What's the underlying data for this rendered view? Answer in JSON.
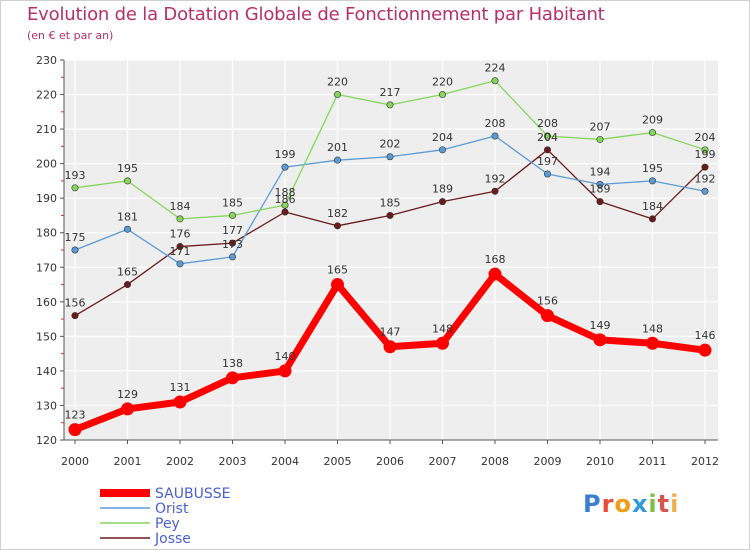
{
  "header": {
    "title": "Evolution de la Dotation Globale de Fonctionnement par Habitant",
    "subtitle": "(en € et par an)"
  },
  "chart_data": {
    "type": "line",
    "title": "Evolution de la Dotation Globale de Fonctionnement par Habitant",
    "subtitle": "(en € et par an)",
    "x": [
      "2000",
      "2001",
      "2002",
      "2003",
      "2004",
      "2005",
      "2006",
      "2007",
      "2008",
      "2009",
      "2010",
      "2011",
      "2012"
    ],
    "ylim": [
      120,
      230
    ],
    "yticks": [
      120,
      130,
      140,
      150,
      160,
      170,
      180,
      190,
      200,
      210,
      220,
      230
    ],
    "grid": true,
    "legend_position": "bottom-left",
    "series": [
      {
        "name": "Josse",
        "color": "#6b1b1b",
        "values": [
          156,
          165,
          176,
          177,
          186,
          182,
          185,
          189,
          192,
          204,
          189,
          184,
          199
        ]
      },
      {
        "name": "Orist",
        "color": "#5b9bd5",
        "values": [
          175,
          181,
          171,
          173,
          199,
          201,
          202,
          204,
          208,
          197,
          194,
          195,
          192
        ]
      },
      {
        "name": "Pey",
        "color": "#85d65a",
        "values": [
          193,
          195,
          184,
          185,
          188,
          220,
          217,
          220,
          224,
          208,
          207,
          209,
          204
        ]
      },
      {
        "name": "SAUBUSSE",
        "color": "#ff0000",
        "values": [
          123,
          129,
          131,
          138,
          140,
          165,
          147,
          148,
          168,
          156,
          149,
          148,
          146
        ]
      }
    ],
    "legend_order": [
      "SAUBUSSE",
      "Orist",
      "Pey",
      "Josse"
    ]
  },
  "logo": {
    "text": "Proxiti",
    "letters": [
      "P",
      "r",
      "o",
      "x",
      "i",
      "t",
      "i"
    ],
    "colors": [
      "#3c7fd1",
      "#e74c3c",
      "#f39c12",
      "#2e9bd6",
      "#7bc043",
      "#d9534f",
      "#f0ad4e"
    ]
  }
}
